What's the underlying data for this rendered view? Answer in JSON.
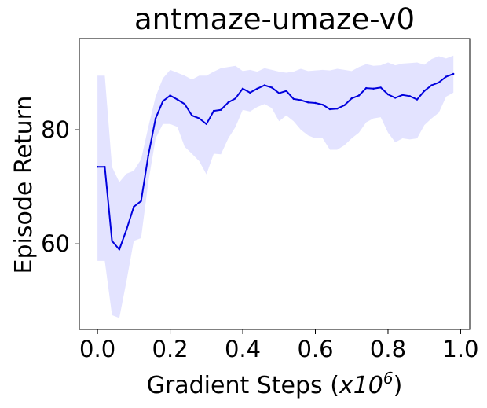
{
  "chart_data": {
    "type": "line",
    "title": "antmaze-umaze-v0",
    "xlabel_prefix": "Gradient Steps (",
    "xlabel_var": "x",
    "xlabel_base": "10",
    "xlabel_exp": "6",
    "xlabel_suffix": ")",
    "ylabel": "Episode Return",
    "xlim": [
      -0.05,
      1.025
    ],
    "ylim": [
      45.0,
      96.0
    ],
    "xticks": [
      0.0,
      0.2,
      0.4,
      0.6,
      0.8,
      1.0
    ],
    "xtick_labels": [
      "0.0",
      "0.2",
      "0.4",
      "0.6",
      "0.8",
      "1.0"
    ],
    "yticks": [
      60,
      80
    ],
    "ytick_labels": [
      "60",
      "80"
    ],
    "grid": false,
    "line_color": "#0000dd",
    "band_color": "#dcdcff",
    "series": [
      {
        "x": [
          0.0,
          0.02,
          0.04,
          0.06,
          0.08,
          0.1,
          0.12,
          0.14,
          0.16,
          0.18,
          0.2,
          0.22,
          0.24,
          0.26,
          0.28,
          0.3,
          0.32,
          0.34,
          0.36,
          0.38,
          0.4,
          0.42,
          0.44,
          0.46,
          0.48,
          0.5,
          0.52,
          0.54,
          0.56,
          0.58,
          0.6,
          0.62,
          0.64,
          0.66,
          0.68,
          0.7,
          0.72,
          0.74,
          0.76,
          0.78,
          0.8,
          0.82,
          0.84,
          0.86,
          0.88,
          0.9,
          0.92,
          0.94,
          0.96,
          0.98
        ],
        "values": [
          73.5,
          73.5,
          60.5,
          59.0,
          62.5,
          66.5,
          67.5,
          75.5,
          82.0,
          85.0,
          86.0,
          85.3,
          84.5,
          82.5,
          82.0,
          81.0,
          83.3,
          83.5,
          84.8,
          85.5,
          87.2,
          86.5,
          87.2,
          87.8,
          87.4,
          86.4,
          86.8,
          85.4,
          85.2,
          84.8,
          84.7,
          84.4,
          83.6,
          83.7,
          84.3,
          85.5,
          86.0,
          87.3,
          87.2,
          87.4,
          86.2,
          85.6,
          86.1,
          85.9,
          85.3,
          86.8,
          87.8,
          88.3,
          89.3,
          89.8
        ],
        "upper": [
          89.5,
          89.5,
          73.5,
          70.8,
          72.3,
          72.8,
          74.8,
          80.5,
          85.8,
          89.0,
          90.5,
          90.0,
          89.5,
          88.8,
          89.5,
          89.5,
          90.2,
          90.8,
          91.0,
          91.2,
          90.3,
          90.5,
          90.2,
          90.8,
          90.5,
          90.2,
          90.0,
          90.2,
          90.7,
          90.3,
          90.4,
          90.5,
          90.4,
          90.7,
          90.5,
          90.3,
          91.0,
          91.5,
          91.2,
          91.3,
          91.8,
          91.3,
          91.6,
          91.7,
          91.8,
          91.4,
          92.4,
          92.9,
          92.5,
          93.0
        ],
        "lower": [
          57.0,
          57.0,
          47.5,
          47.0,
          53.5,
          60.5,
          61.0,
          70.8,
          78.5,
          81.0,
          81.0,
          80.5,
          77.0,
          75.8,
          74.5,
          72.2,
          75.8,
          75.7,
          78.5,
          80.5,
          83.5,
          83.2,
          84.0,
          84.5,
          83.8,
          81.5,
          82.5,
          81.5,
          80.0,
          79.0,
          78.5,
          78.5,
          76.5,
          76.5,
          77.3,
          78.5,
          79.5,
          81.3,
          82.0,
          82.2,
          79.5,
          77.8,
          78.5,
          78.3,
          78.5,
          80.8,
          82.0,
          83.0,
          85.8,
          86.5
        ]
      }
    ]
  }
}
